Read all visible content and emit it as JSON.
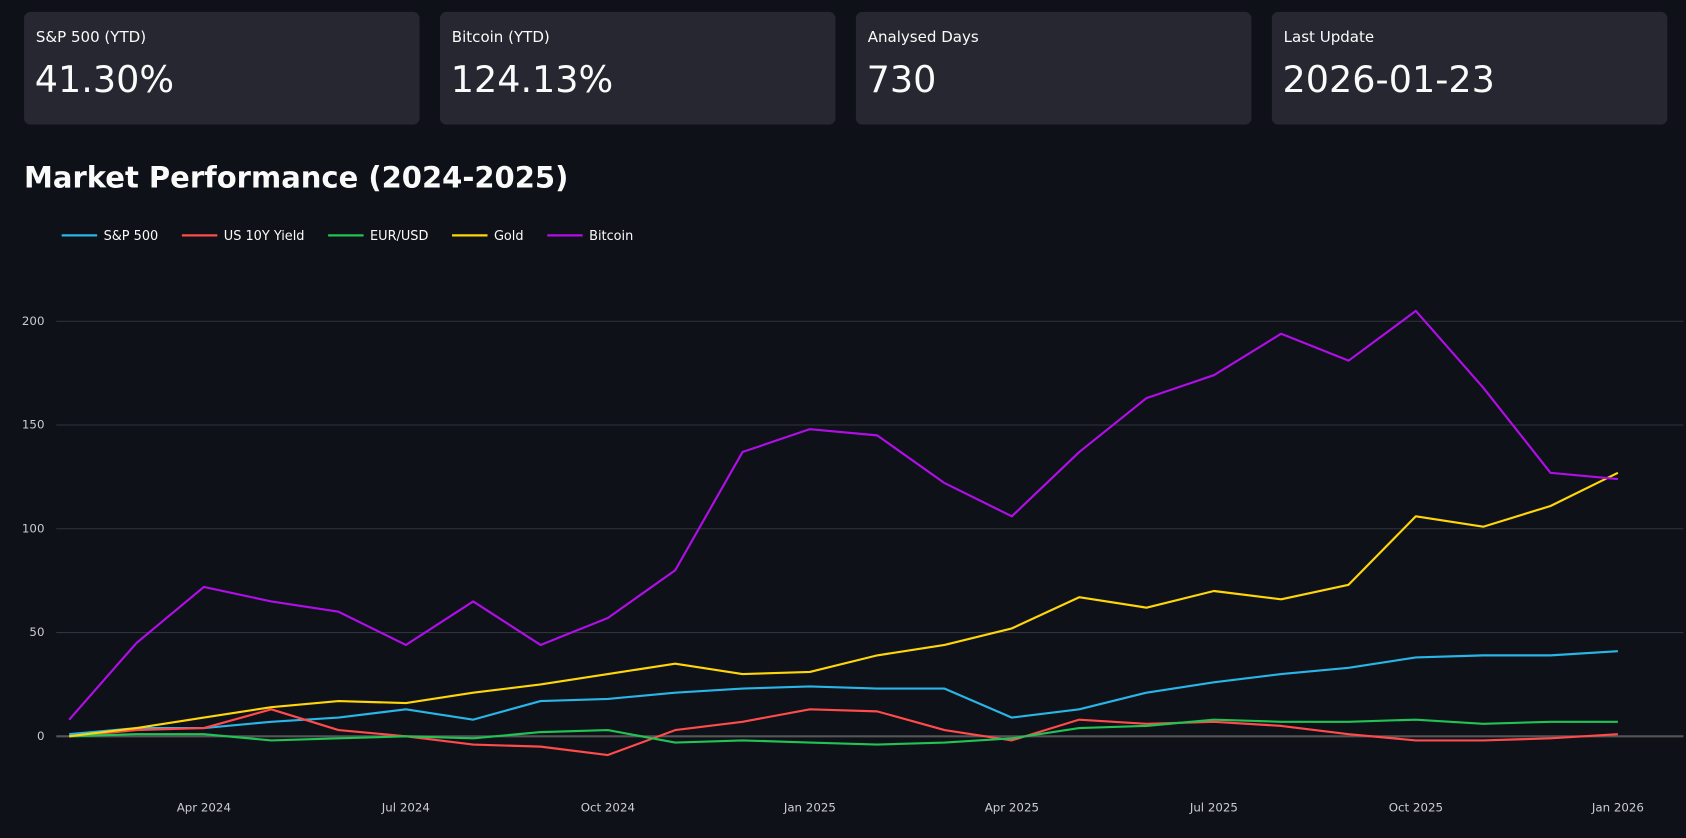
{
  "metrics": [
    {
      "label": "S&P 500 (YTD)",
      "value": "41.30%"
    },
    {
      "label": "Bitcoin (YTD)",
      "value": "124.13%"
    },
    {
      "label": "Analysed Days",
      "value": "730"
    },
    {
      "label": "Last Update",
      "value": "2026-01-23"
    }
  ],
  "chart_data": {
    "type": "line",
    "title": "Market Performance (2024-2025)",
    "x": [
      "2024-02",
      "2024-03",
      "2024-04",
      "2024-05",
      "2024-06",
      "2024-07",
      "2024-08",
      "2024-09",
      "2024-10",
      "2024-11",
      "2024-12",
      "2025-01",
      "2025-02",
      "2025-03",
      "2025-04",
      "2025-05",
      "2025-06",
      "2025-07",
      "2025-08",
      "2025-09",
      "2025-10",
      "2025-11",
      "2025-12",
      "2026-01"
    ],
    "xlim": [
      "2024-02",
      "2026-01"
    ],
    "xticks": [
      {
        "value": "2024-04",
        "label": "Apr 2024"
      },
      {
        "value": "2024-07",
        "label": "Jul 2024"
      },
      {
        "value": "2024-10",
        "label": "Oct 2024"
      },
      {
        "value": "2025-01",
        "label": "Jan 2025"
      },
      {
        "value": "2025-04",
        "label": "Apr 2025"
      },
      {
        "value": "2025-07",
        "label": "Jul 2025"
      },
      {
        "value": "2025-10",
        "label": "Oct 2025"
      },
      {
        "value": "2026-01",
        "label": "Jan 2026"
      }
    ],
    "ylim": [
      -30,
      230
    ],
    "yticks": [
      0,
      50,
      100,
      150,
      200
    ],
    "grid": true,
    "series": [
      {
        "name": "S&P 500",
        "color": "#29b5e8",
        "values": [
          1,
          4,
          4,
          7,
          9,
          13,
          8,
          17,
          18,
          21,
          23,
          24,
          23,
          23,
          9,
          13,
          21,
          26,
          30,
          33,
          38,
          39,
          39,
          41
        ]
      },
      {
        "name": "US 10Y Yield",
        "color": "#ff4b4b",
        "values": [
          0,
          3,
          4,
          13,
          3,
          0,
          -4,
          -5,
          -9,
          3,
          7,
          13,
          12,
          3,
          -2,
          8,
          6,
          7,
          5,
          1,
          -2,
          -2,
          -1,
          1
        ]
      },
      {
        "name": "EUR/USD",
        "color": "#21c354",
        "values": [
          0,
          1,
          1,
          -2,
          -1,
          0,
          -1,
          2,
          3,
          -3,
          -2,
          -3,
          -4,
          -3,
          -1,
          4,
          5,
          8,
          7,
          7,
          8,
          6,
          7,
          7
        ]
      },
      {
        "name": "Gold",
        "color": "#ffd60a",
        "values": [
          0,
          4,
          9,
          14,
          17,
          16,
          21,
          25,
          30,
          35,
          30,
          31,
          39,
          44,
          52,
          67,
          62,
          70,
          66,
          73,
          106,
          101,
          111,
          127
        ]
      },
      {
        "name": "Bitcoin",
        "color": "#b00ee8",
        "values": [
          8,
          45,
          72,
          65,
          60,
          44,
          65,
          44,
          57,
          80,
          137,
          148,
          145,
          122,
          106,
          137,
          163,
          174,
          194,
          181,
          205,
          168,
          127,
          124
        ]
      }
    ]
  }
}
